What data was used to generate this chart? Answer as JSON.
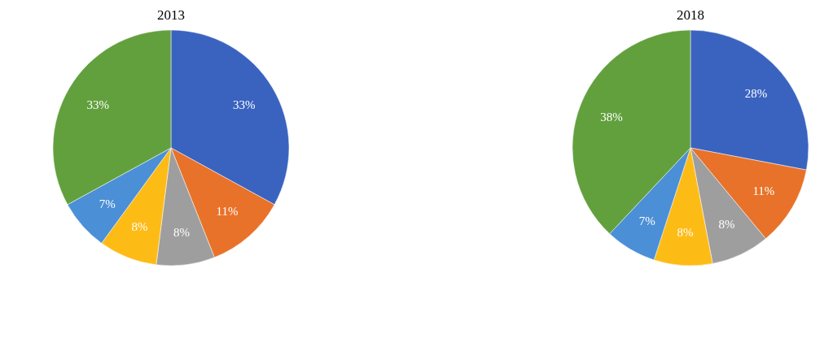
{
  "chart_data": [
    {
      "type": "pie",
      "title": "2013",
      "categories": [
        null,
        null,
        null,
        null,
        null,
        null
      ],
      "values": [
        33,
        11,
        8,
        8,
        7,
        33
      ],
      "colors": [
        "#3a63c0",
        "#e8722a",
        "#9e9e9e",
        "#fdbb16",
        "#4b8fd6",
        "#62a03e"
      ],
      "value_labels": [
        "33%",
        "11%",
        "8%",
        "8%",
        "7%",
        "33%"
      ],
      "legend": false
    },
    {
      "type": "pie",
      "title": "2018",
      "categories": [
        null,
        null,
        null,
        null,
        null,
        null
      ],
      "values": [
        28,
        11,
        8,
        8,
        7,
        38
      ],
      "colors": [
        "#3a63c0",
        "#e8722a",
        "#9e9e9e",
        "#fdbb16",
        "#4b8fd6",
        "#62a03e"
      ],
      "value_labels": [
        "28%",
        "11%",
        "8%",
        "8%",
        "7%",
        "38%"
      ],
      "legend": false
    }
  ]
}
